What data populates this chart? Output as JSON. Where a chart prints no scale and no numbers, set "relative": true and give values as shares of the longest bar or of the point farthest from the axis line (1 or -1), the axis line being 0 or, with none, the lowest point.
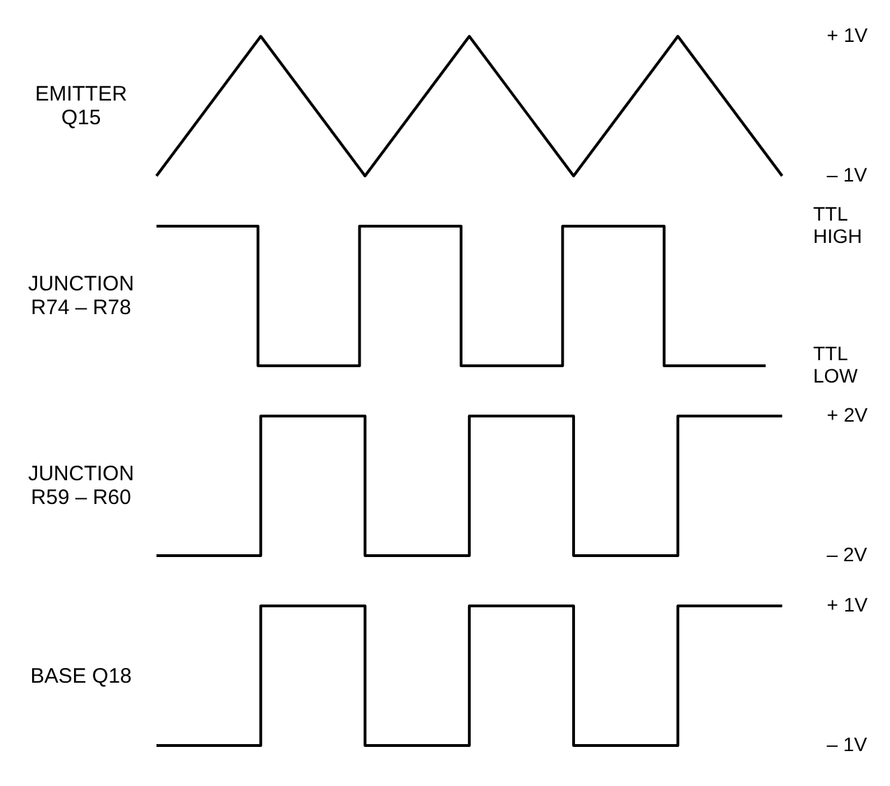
{
  "chart_data": [
    {
      "type": "line",
      "ylabel": "EMITTER Q15",
      "categories": [
        null,
        null,
        null,
        null,
        null,
        null,
        null
      ],
      "ylim": [
        -1,
        1
      ],
      "yticks": [
        {
          "value": 1,
          "label": "+ 1V"
        },
        {
          "value": -1,
          "label": "– 1V"
        }
      ],
      "tick_labels": "y",
      "marker": "none",
      "line_style": "solid",
      "series": [
        {
          "color": "#000000",
          "values": [
            -1,
            1,
            -1,
            1,
            -1,
            1,
            -1
          ]
        }
      ]
    },
    {
      "type": "step",
      "ylabel": "JUNCTION R74 – R78",
      "categories": [
        null,
        null,
        null,
        null,
        null,
        null,
        null
      ],
      "relative": true,
      "annotations": [
        "TTL HIGH",
        "TTL LOW"
      ],
      "tick_labels": "y",
      "marker": "none",
      "line_style": "solid",
      "series": [
        {
          "color": "#000000",
          "values": [
            1,
            0,
            1,
            0,
            1,
            0,
            0
          ]
        }
      ]
    },
    {
      "type": "step",
      "ylabel": "JUNCTION R59 – R60",
      "categories": [
        null,
        null,
        null,
        null,
        null,
        null,
        null
      ],
      "ylim": [
        -2,
        2
      ],
      "yticks": [
        {
          "value": 2,
          "label": "+ 2V"
        },
        {
          "value": -2,
          "label": "– 2V"
        }
      ],
      "tick_labels": "y",
      "marker": "none",
      "line_style": "solid",
      "series": [
        {
          "color": "#000000",
          "values": [
            -2,
            2,
            -2,
            2,
            -2,
            2,
            2
          ]
        }
      ]
    },
    {
      "type": "step",
      "ylabel": "BASE Q18",
      "categories": [
        null,
        null,
        null,
        null,
        null,
        null,
        null
      ],
      "ylim": [
        -1,
        1
      ],
      "yticks": [
        {
          "value": 1,
          "label": "+ 1V"
        },
        {
          "value": -1,
          "label": "– 1V"
        }
      ],
      "tick_labels": "y",
      "marker": "none",
      "line_style": "solid",
      "series": [
        {
          "color": "#000000",
          "values": [
            -1,
            1,
            -1,
            1,
            -1,
            1,
            1
          ]
        }
      ]
    }
  ]
}
